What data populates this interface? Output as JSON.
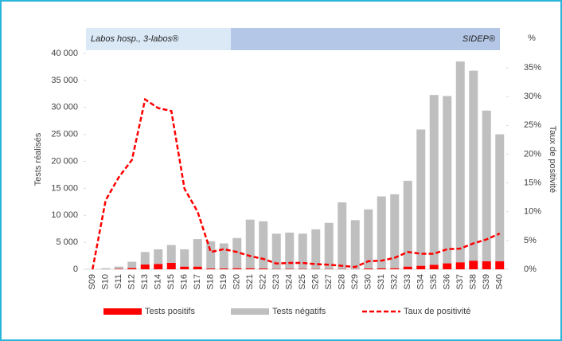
{
  "chart_data": {
    "type": "bar",
    "stacked": true,
    "banners": [
      {
        "label": "Labos hosp., 3-labos®",
        "color": "#dbe9f6"
      },
      {
        "label": "SIDEP®",
        "color": "#b4c7e7"
      }
    ],
    "y_label": "Tests réalisés",
    "y2_label": "Taux de positivité",
    "y2_unit": "%",
    "categories": [
      "S09",
      "S10",
      "S11",
      "S12",
      "S13",
      "S14",
      "S15",
      "S16",
      "S17",
      "S18",
      "S19",
      "S20",
      "S21",
      "S22",
      "S23",
      "S24",
      "S25",
      "S26",
      "S27",
      "S28",
      "S29",
      "S30",
      "S31",
      "S32",
      "S33",
      "S34",
      "S35",
      "S36",
      "S37",
      "S38",
      "S39",
      "S40"
    ],
    "series": [
      {
        "name": "Tests positifs",
        "type": "bar",
        "color": "#ff0000",
        "values": [
          0,
          20,
          80,
          250,
          900,
          1000,
          1200,
          500,
          500,
          150,
          150,
          200,
          200,
          150,
          60,
          80,
          70,
          60,
          60,
          60,
          40,
          150,
          200,
          200,
          500,
          650,
          850,
          1100,
          1300,
          1600,
          1500,
          1500
        ]
      },
      {
        "name": "Tests négatifs",
        "type": "bar",
        "color": "#bfbfbf",
        "values": [
          0,
          180,
          420,
          1150,
          2300,
          2700,
          3300,
          3200,
          5100,
          5050,
          4650,
          5600,
          9000,
          8750,
          6540,
          6720,
          6530,
          7340,
          8540,
          12340,
          9060,
          10950,
          13300,
          13700,
          15900,
          25250,
          31450,
          31000,
          37200,
          35200,
          27900,
          23500
        ]
      },
      {
        "name": "Taux de positivité",
        "type": "line",
        "axis": "y2",
        "color": "#ff0000",
        "dashed": true,
        "values": [
          0,
          12,
          16,
          19,
          29.5,
          28,
          27.5,
          14,
          10,
          3,
          3.5,
          3,
          2.3,
          1.8,
          1,
          1.1,
          1.1,
          0.9,
          0.8,
          0.6,
          0.4,
          1.4,
          1.5,
          2,
          3,
          2.7,
          2.7,
          3.5,
          3.6,
          4.5,
          5.2,
          6.2
        ]
      }
    ],
    "ylim": [
      0,
      40000
    ],
    "yticks": [
      0,
      {
        "value": 5000,
        "label": "5 000"
      },
      {
        "value": 10000,
        "label": "10 000"
      },
      {
        "value": 15000,
        "label": "15 000"
      },
      {
        "value": 20000,
        "label": "20 000"
      },
      {
        "value": 25000,
        "label": "25 000"
      },
      {
        "value": 30000,
        "label": "30 000"
      },
      {
        "value": 35000,
        "label": "35 000"
      },
      {
        "value": 40000,
        "label": "40 000"
      }
    ],
    "y2lim": [
      0,
      37.5
    ],
    "y2ticks": [
      {
        "value": 0,
        "label": "0%"
      },
      {
        "value": 5,
        "label": "5%"
      },
      {
        "value": 10,
        "label": "10%"
      },
      {
        "value": 15,
        "label": "15%"
      },
      {
        "value": 20,
        "label": "20%"
      },
      {
        "value": 25,
        "label": "25%"
      },
      {
        "value": 30,
        "label": "30%"
      },
      {
        "value": 35,
        "label": "35%"
      }
    ],
    "grid": false,
    "legend": "bottom"
  }
}
